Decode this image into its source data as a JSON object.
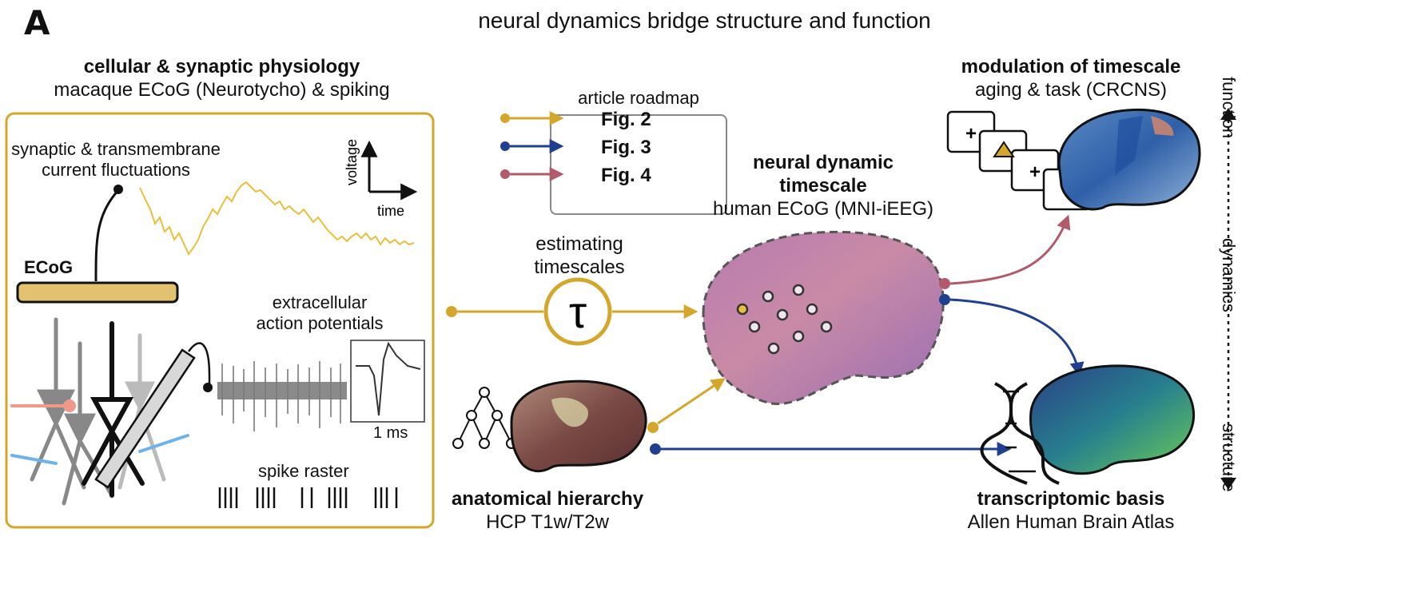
{
  "panel_letter": "A",
  "title": "neural dynamics bridge structure and function",
  "cellular": {
    "heading": "cellular & synaptic physiology",
    "subheading": "macaque ECoG (Neurotycho) & spiking",
    "synaptic_label_1": "synaptic & transmembrane",
    "synaptic_label_2": "current fluctuations",
    "voltage_label": "voltage",
    "time_label": "time",
    "ecog_label": "ECoG",
    "extracellular_1": "extracellular",
    "extracellular_2": "action potentials",
    "scale_label": "1 ms",
    "raster_label": "spike raster"
  },
  "roadmap": {
    "title": "article roadmap",
    "items": [
      {
        "label": "Fig. 2",
        "color": "#d4a72c"
      },
      {
        "label": "Fig. 3",
        "color": "#1f3f8f"
      },
      {
        "label": "Fig. 4",
        "color": "#b05a6a"
      }
    ]
  },
  "estimating": {
    "line1": "estimating",
    "line2": "timescales",
    "symbol": "τ"
  },
  "timescale": {
    "line1": "neural dynamic",
    "line2": "timescale",
    "line3": "human ECoG (MNI-iEEG)"
  },
  "anatomical": {
    "heading": "anatomical hierarchy",
    "subheading": "HCP T1w/T2w"
  },
  "modulation": {
    "heading": "modulation of timescale",
    "subheading": "aging & task (CRCNS)",
    "card_symbol": "+"
  },
  "transcriptomic": {
    "heading": "transcriptomic basis",
    "subheading": "Allen Human Brain Atlas"
  },
  "axis": {
    "function": "function",
    "dynamics": "dynamics",
    "structure": "structure"
  },
  "colors": {
    "gold": "#d4a72c",
    "navy": "#1f3f8f",
    "rose": "#b05a6a",
    "ecog_bar": "#e2c270",
    "trace": "#e8bf3c"
  }
}
